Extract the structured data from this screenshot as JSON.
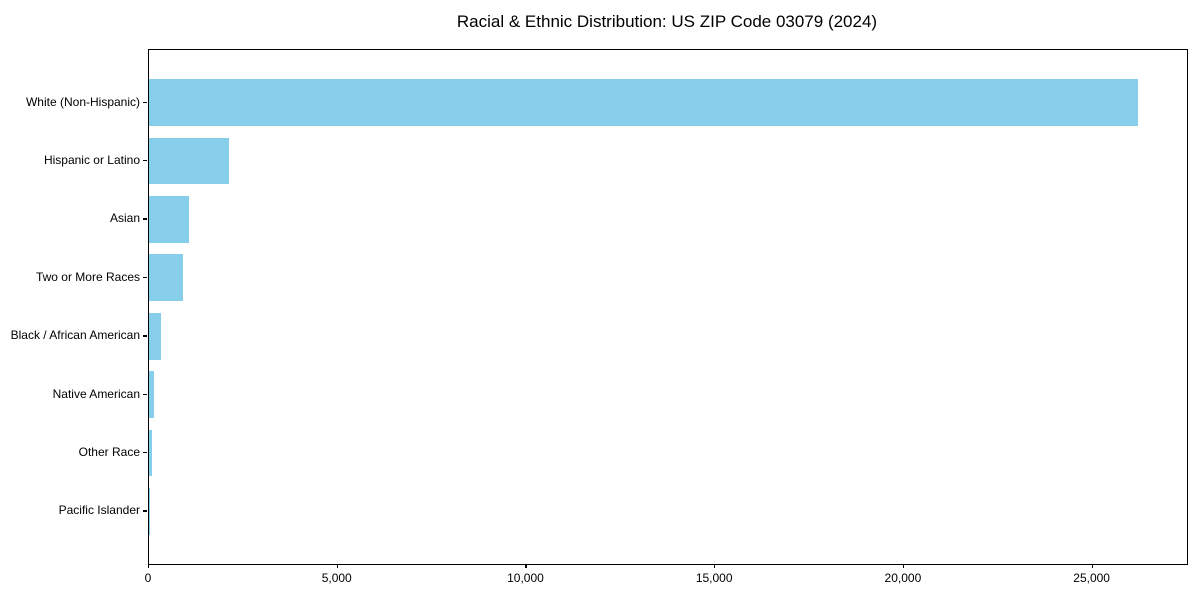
{
  "chart_data": {
    "type": "bar",
    "orientation": "horizontal",
    "title": "Racial & Ethnic Distribution: US ZIP Code 03079 (2024)",
    "categories": [
      "White (Non-Hispanic)",
      "Hispanic or Latino",
      "Asian",
      "Two or More Races",
      "Black / African American",
      "Native American",
      "Other Race",
      "Pacific Islander"
    ],
    "values": [
      26200,
      2115,
      1060,
      910,
      320,
      140,
      75,
      20
    ],
    "xlabel": "",
    "ylabel": "",
    "xlim": [
      0,
      27500
    ],
    "xticks": [
      0,
      5000,
      10000,
      15000,
      20000,
      25000
    ],
    "xtick_labels": [
      "0",
      "5,000",
      "10,000",
      "15,000",
      "20,000",
      "25,000"
    ],
    "bar_color": "#87CEEB",
    "spine_color": "#000000",
    "grid": false,
    "legend": null
  }
}
